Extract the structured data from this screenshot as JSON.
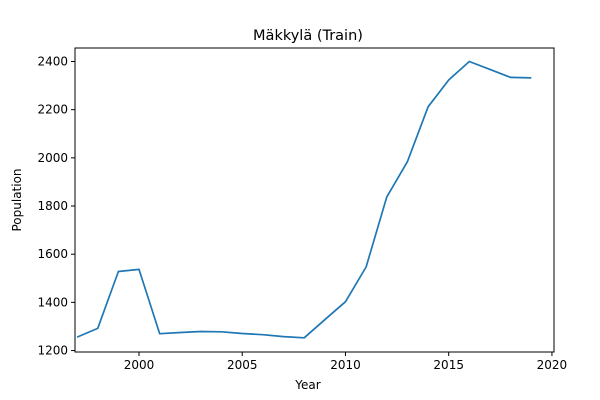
{
  "chart_data": {
    "type": "line",
    "title": "Mäkkylä (Train)",
    "xlabel": "Year",
    "ylabel": "Population",
    "xlim": [
      1996.9,
      2020.1
    ],
    "ylim": [
      1194,
      2456
    ],
    "xticks": [
      2000,
      2005,
      2010,
      2015,
      2020
    ],
    "yticks": [
      1200,
      1400,
      1600,
      1800,
      2000,
      2200,
      2400
    ],
    "grid": false,
    "legend": "none",
    "series": [
      {
        "color": "#1f77b4",
        "x": [
          1997,
          1998,
          1999,
          2000,
          2001,
          2002,
          2003,
          2004,
          2005,
          2006,
          2007,
          2008,
          2009,
          2010,
          2011,
          2012,
          2013,
          2014,
          2015,
          2016,
          2017,
          2018,
          2019
        ],
        "y": [
          1256,
          1292,
          1528,
          1537,
          1270,
          1275,
          1279,
          1278,
          1271,
          1266,
          1258,
          1253,
          1328,
          1403,
          1547,
          1838,
          1984,
          2212,
          2323,
          2400,
          2367,
          2334,
          2332
        ]
      }
    ]
  }
}
